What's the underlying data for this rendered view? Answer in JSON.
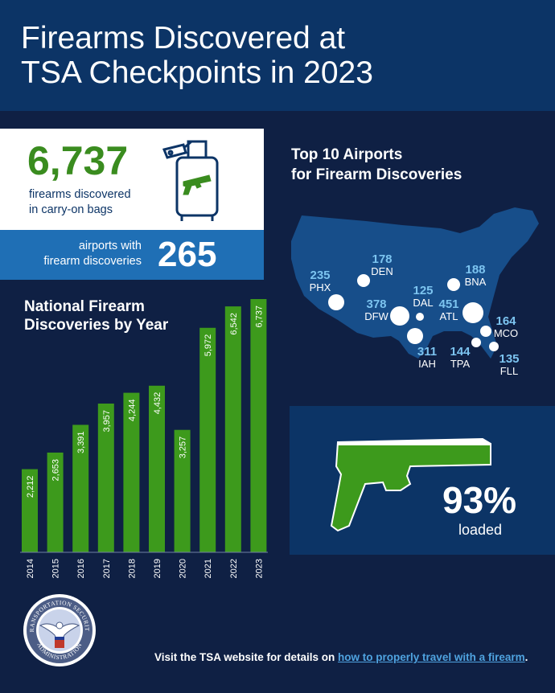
{
  "header": {
    "title_line1": "Firearms Discovered at",
    "title_line2": "TSA Checkpoints in 2023"
  },
  "stats": {
    "firearms_total": "6,737",
    "firearms_label_line1": "firearms discovered",
    "firearms_label_line2": "in carry-on bags",
    "airports_label_line1": "airports with",
    "airports_label_line2": "firearm discoveries",
    "airports_total": "265"
  },
  "colors": {
    "background": "#0f2044",
    "header": "#0c3466",
    "accent_green": "#3a8c1f",
    "bar_green": "#3d9a1c",
    "accent_blue": "#1f6fb5",
    "map_blue": "#174e8a",
    "label_blue": "#7cc4f0"
  },
  "icons": [
    "suitcase-gun-icon",
    "handgun-icon",
    "tsa-seal-icon"
  ],
  "chart_data": {
    "type": "bar",
    "title_line1": "National Firearm",
    "title_line2": "Discoveries by Year",
    "categories": [
      "2014",
      "2015",
      "2016",
      "2017",
      "2018",
      "2019",
      "2020",
      "2021",
      "2022",
      "2023"
    ],
    "values": [
      2212,
      2653,
      3391,
      3957,
      4244,
      4432,
      3257,
      5972,
      6542,
      6737
    ],
    "value_labels": [
      "2,212",
      "2,653",
      "3,391",
      "3,957",
      "4,244",
      "4,432",
      "3,257",
      "5,972",
      "6,542",
      "6,737"
    ],
    "ylim": [
      0,
      6737
    ],
    "grid": false,
    "legend": "none"
  },
  "map": {
    "title_line1": "Top 10 Airports",
    "title_line2": "for Firearm Discoveries",
    "airports": [
      {
        "code": "PHX",
        "count": "235"
      },
      {
        "code": "DEN",
        "count": "178"
      },
      {
        "code": "BNA",
        "count": "188"
      },
      {
        "code": "DAL",
        "count": "125"
      },
      {
        "code": "DFW",
        "count": "378"
      },
      {
        "code": "ATL",
        "count": "451"
      },
      {
        "code": "MCO",
        "count": "164"
      },
      {
        "code": "IAH",
        "count": "311"
      },
      {
        "code": "TPA",
        "count": "144"
      },
      {
        "code": "FLL",
        "count": "135"
      }
    ]
  },
  "loaded": {
    "percent": "93%",
    "label": "loaded",
    "fraction": 0.93
  },
  "footer": {
    "prefix": "Visit the TSA website for details on ",
    "link_text": "how to properly travel with a firearm",
    "suffix": "."
  },
  "seal": {
    "text_top": "TRANSPORTATION SECURITY",
    "text_bottom": "ADMINISTRATION"
  }
}
